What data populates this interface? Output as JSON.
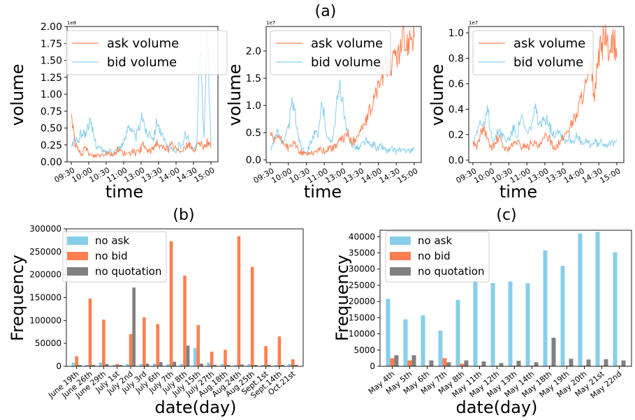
{
  "figure": {
    "label_a": "(a)",
    "label_b": "(b)",
    "label_c": "(c)"
  },
  "colors": {
    "ask": "#87ceeb",
    "bid": "#ff7f50",
    "quote": "#808080",
    "ask_line": "#ff7f50",
    "bid_line": "#87ceeb"
  },
  "chart_data": [
    {
      "id": "a1",
      "type": "line",
      "title": "",
      "xlabel": "time",
      "ylabel": "volume",
      "multiplier": "1e8",
      "x_ticks": [
        "09:30",
        "10:00",
        "10:30",
        "11:00",
        "13:00",
        "13:30",
        "14:00",
        "14:30",
        "15:00"
      ],
      "y_ticks": [
        "0.00",
        "0.25",
        "0.50",
        "0.75",
        "1.00",
        "1.25",
        "1.50",
        "1.75",
        "2.00"
      ],
      "ylim": [
        0,
        2.0
      ],
      "legend": "top-left",
      "series": [
        {
          "name": "ask volume",
          "key": "ask",
          "values": [
            0.72,
            0.3,
            0.15,
            0.12,
            0.2,
            0.12,
            0.08,
            0.1,
            0.1,
            0.12,
            0.15,
            0.12,
            0.1,
            0.2,
            0.15,
            0.12,
            0.1,
            0.18,
            0.12,
            0.15,
            0.25,
            0.18,
            0.15,
            0.22,
            0.3,
            0.2,
            0.22,
            0.18,
            0.25,
            0.2,
            0.15,
            0.2,
            0.22,
            0.25,
            0.18,
            0.2,
            0.28,
            0.22,
            0.3,
            0.2
          ]
        },
        {
          "name": "bid volume",
          "key": "bid",
          "values": [
            0.2,
            0.35,
            0.3,
            0.45,
            0.4,
            0.6,
            0.45,
            0.25,
            0.2,
            0.15,
            0.12,
            0.18,
            0.15,
            0.2,
            0.25,
            0.3,
            0.6,
            0.45,
            0.35,
            0.5,
            0.7,
            0.4,
            0.45,
            0.35,
            0.65,
            0.4,
            0.3,
            0.2,
            0.25,
            0.1,
            0.3,
            0.2,
            0.45,
            0.25,
            0.15,
            0.25,
            1.85,
            0.3,
            1.9,
            0.2
          ]
        }
      ]
    },
    {
      "id": "a2",
      "type": "line",
      "title": "",
      "xlabel": "time",
      "ylabel": "volume",
      "multiplier": "1e7",
      "x_ticks": [
        "09:30",
        "10:00",
        "10:30",
        "11:00",
        "13:00",
        "13:30",
        "14:00",
        "14:30",
        "15:00"
      ],
      "y_ticks": [
        "0.0",
        "0.5",
        "1.0",
        "1.5",
        "2.0"
      ],
      "ylim": [
        -0.05,
        2.45
      ],
      "legend": "top-left",
      "series": [
        {
          "name": "ask volume",
          "key": "ask",
          "values": [
            0.5,
            0.3,
            0.45,
            0.35,
            0.3,
            0.2,
            0.3,
            0.25,
            0.15,
            0.12,
            0.1,
            0.15,
            0.12,
            0.2,
            0.18,
            0.15,
            0.25,
            0.2,
            0.3,
            0.35,
            0.4,
            0.5,
            0.3,
            0.4,
            0.5,
            0.6,
            0.7,
            0.9,
            1.1,
            1.3,
            1.5,
            1.6,
            1.8,
            1.7,
            2.0,
            1.9,
            2.2,
            2.1,
            2.35,
            2.3
          ]
        },
        {
          "name": "bid volume",
          "key": "bid",
          "values": [
            0.15,
            0.4,
            0.5,
            0.35,
            0.4,
            0.6,
            1.1,
            0.7,
            0.3,
            0.2,
            0.15,
            0.35,
            0.5,
            0.4,
            1.1,
            0.6,
            0.3,
            0.45,
            1.0,
            1.4,
            0.8,
            0.4,
            0.3,
            0.25,
            0.2,
            0.3,
            0.35,
            0.25,
            0.3,
            0.2,
            0.25,
            0.2,
            0.15,
            0.2,
            0.15,
            0.2,
            0.15,
            0.2,
            0.15,
            0.2
          ]
        }
      ]
    },
    {
      "id": "a3",
      "type": "line",
      "title": "",
      "xlabel": "time",
      "ylabel": "volume",
      "multiplier": "1e7",
      "x_ticks": [
        "09:30",
        "10:00",
        "10:30",
        "11:00",
        "13:00",
        "13:30",
        "14:00",
        "14:30",
        "15:00"
      ],
      "y_ticks": [
        "0.0",
        "0.2",
        "0.4",
        "0.6",
        "0.8",
        "1.0"
      ],
      "ylim": [
        -0.02,
        1.05
      ],
      "legend": "top-left",
      "series": [
        {
          "name": "ask volume",
          "key": "ask",
          "values": [
            0.15,
            0.1,
            0.2,
            0.25,
            0.15,
            0.1,
            0.12,
            0.18,
            0.12,
            0.08,
            0.1,
            0.12,
            0.15,
            0.1,
            0.12,
            0.1,
            0.15,
            0.12,
            0.1,
            0.15,
            0.2,
            0.15,
            0.1,
            0.12,
            0.15,
            0.2,
            0.25,
            0.3,
            0.35,
            0.45,
            0.55,
            0.6,
            0.7,
            0.5,
            0.8,
            0.9,
            1.0,
            0.75,
            0.95,
            0.85
          ]
        },
        {
          "name": "bid volume",
          "key": "bid",
          "values": [
            0.1,
            0.25,
            0.3,
            0.25,
            0.4,
            0.2,
            0.15,
            0.25,
            0.2,
            0.15,
            0.18,
            0.25,
            0.2,
            0.35,
            0.25,
            0.2,
            0.3,
            0.4,
            0.25,
            0.3,
            0.35,
            0.25,
            0.2,
            0.25,
            0.2,
            0.15,
            0.18,
            0.15,
            0.18,
            0.15,
            0.12,
            0.15,
            0.12,
            0.15,
            0.12,
            0.15,
            0.12,
            0.15,
            0.12,
            0.15
          ]
        }
      ]
    },
    {
      "id": "b",
      "type": "bar",
      "title": "",
      "xlabel": "date(day)",
      "ylabel": "Frequency",
      "ylim": [
        0,
        300000
      ],
      "y_ticks": [
        "0",
        "50000",
        "100000",
        "150000",
        "200000",
        "250000",
        "300000"
      ],
      "y_tick_values": [
        0,
        50000,
        100000,
        150000,
        200000,
        250000,
        300000
      ],
      "legend": "top-left",
      "categories": [
        "June 19th",
        "June 26th",
        "June 29th",
        "July 1st",
        "July 2nd",
        "July 3rd",
        "July 6th",
        "July 7th",
        "July 8th",
        "July 15th",
        "July 27th",
        "Aug.18th",
        "Aug.24th",
        "Aug.25th",
        "Sept.1st",
        "Sept.14th",
        "Oct.21st"
      ],
      "series": [
        {
          "name": "no ask",
          "key": "ask",
          "values": [
            8000,
            3000,
            8000,
            3000,
            5000,
            5000,
            6000,
            5000,
            5000,
            40000,
            8000,
            5000,
            3000,
            5000,
            3000,
            3000,
            5000
          ]
        },
        {
          "name": "no bid",
          "key": "bid",
          "values": [
            22000,
            148000,
            102000,
            5000,
            70000,
            107000,
            92000,
            273000,
            198000,
            90000,
            32000,
            36000,
            284000,
            217000,
            44000,
            65000,
            15000
          ]
        },
        {
          "name": "no quotation",
          "key": "quote",
          "values": [
            3000,
            3000,
            5000,
            3000,
            172000,
            6000,
            9000,
            10000,
            45000,
            6000,
            3000,
            3000,
            4000,
            3000,
            3000,
            3000,
            3000
          ]
        }
      ]
    },
    {
      "id": "c",
      "type": "bar",
      "title": "",
      "xlabel": "date(day)",
      "ylabel": "Frequency",
      "ylim": [
        0,
        42000
      ],
      "y_ticks": [
        "0",
        "5000",
        "10000",
        "15000",
        "20000",
        "25000",
        "30000",
        "35000",
        "40000"
      ],
      "y_tick_values": [
        0,
        5000,
        10000,
        15000,
        20000,
        25000,
        30000,
        35000,
        40000
      ],
      "legend": "top-left",
      "categories": [
        "May 4th",
        "May 5th",
        "May 6th",
        "May 7th",
        "May 8th",
        "May 11th",
        "May 12th",
        "May 13th",
        "May 14th",
        "May 18th",
        "May 19th",
        "May 20th",
        "May 21st",
        "May 22nd"
      ],
      "series": [
        {
          "name": "no ask",
          "key": "ask",
          "values": [
            20800,
            14500,
            15700,
            11000,
            20500,
            27000,
            25700,
            26200,
            25600,
            35800,
            31000,
            41000,
            41500,
            35200
          ]
        },
        {
          "name": "no bid",
          "key": "bid",
          "values": [
            2500,
            1800,
            200,
            2500,
            800,
            200,
            200,
            200,
            200,
            200,
            200,
            200,
            200,
            200
          ]
        },
        {
          "name": "no quotation",
          "key": "quote",
          "values": [
            3400,
            3400,
            1800,
            1200,
            1800,
            1500,
            1000,
            1700,
            1200,
            8800,
            2300,
            2100,
            2200,
            1800
          ]
        }
      ]
    }
  ]
}
